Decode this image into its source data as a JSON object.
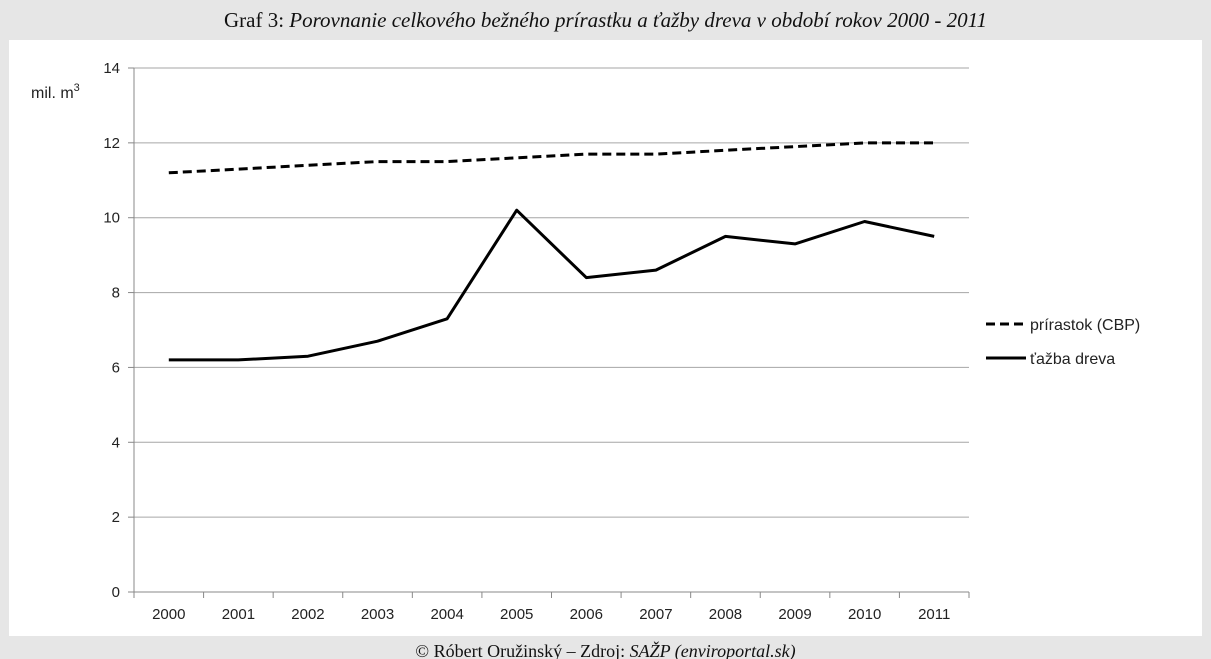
{
  "caption": {
    "prefix": "Graf 3:",
    "title": "Porovnanie celkového bežného prírastku a ťažby dreva v období rokov 2000 - 2011"
  },
  "footer": {
    "prefix": "© Róbert Oružinský – Zdroj:",
    "source": "SAŽP (enviroportal.sk)"
  },
  "chart_data": {
    "type": "line",
    "ylabel": "mil. m³",
    "ylabel_main": "mil. m",
    "ylabel_sup": "3",
    "ylim": [
      0,
      14
    ],
    "yticks": [
      "0",
      "2",
      "4",
      "6",
      "8",
      "10",
      "12",
      "14"
    ],
    "grid": true,
    "legend": "right",
    "x": [
      "2000",
      "2001",
      "2002",
      "2003",
      "2004",
      "2005",
      "2006",
      "2007",
      "2008",
      "2009",
      "2010",
      "2011"
    ],
    "series": [
      {
        "name": "prírastok (CBP)",
        "style": "dashed",
        "color": "#000000",
        "values": [
          11.2,
          11.3,
          11.4,
          11.5,
          11.5,
          11.6,
          11.7,
          11.7,
          11.8,
          11.9,
          12.0,
          12.0
        ]
      },
      {
        "name": "ťažba dreva",
        "style": "solid",
        "color": "#000000",
        "values": [
          6.2,
          6.2,
          6.3,
          6.7,
          7.3,
          10.2,
          8.4,
          8.6,
          9.5,
          9.3,
          9.9,
          9.5
        ]
      }
    ]
  }
}
